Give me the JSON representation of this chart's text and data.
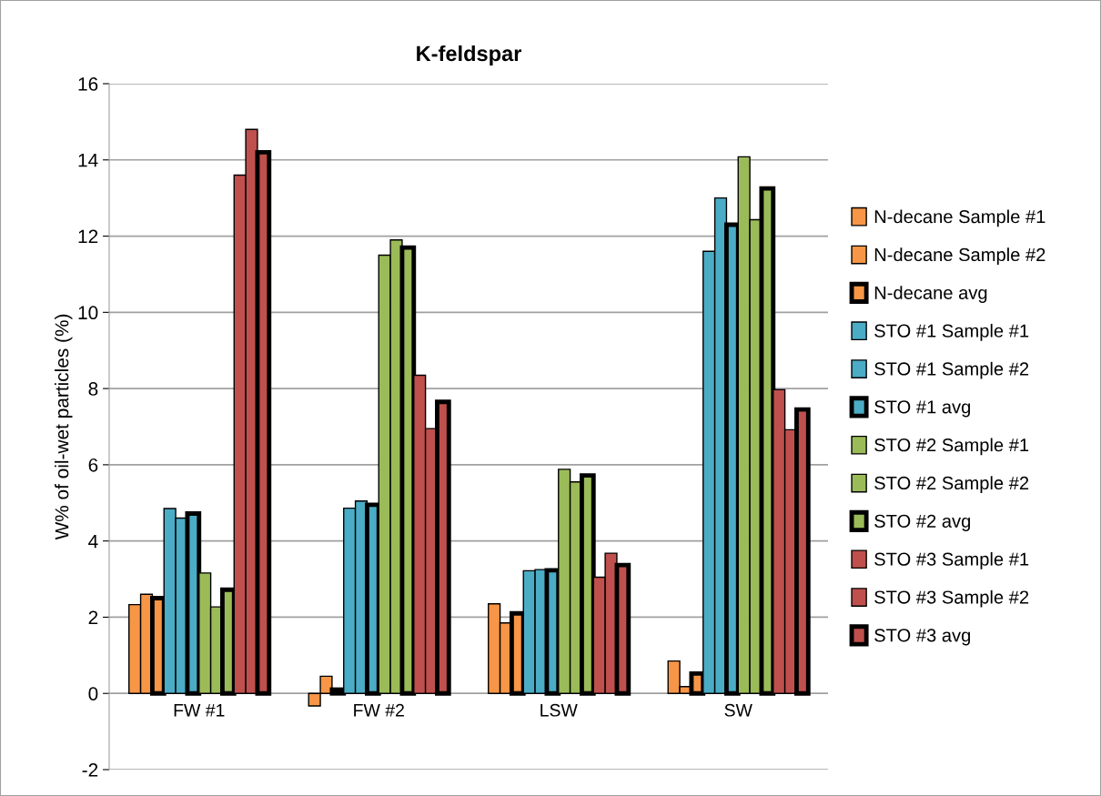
{
  "chart_data": {
    "type": "bar",
    "title": "K-feldspar",
    "ylabel": "W% of oil-wet particles (%)",
    "categories": [
      "FW #1",
      "FW #2",
      "LSW",
      "SW"
    ],
    "ylim": [
      -2,
      16
    ],
    "yticks": [
      -2,
      0,
      2,
      4,
      6,
      8,
      10,
      12,
      14,
      16
    ],
    "grid": "y",
    "legend": "right",
    "series": [
      {
        "name": "N-decane Sample #1",
        "color": "#f79646",
        "values": [
          2.33,
          -0.33,
          2.35,
          0.85
        ]
      },
      {
        "name": "N-decane Sample #2",
        "color": "#f79646",
        "values": [
          2.6,
          0.45,
          1.85,
          0.18
        ]
      },
      {
        "name": "N-decane avg",
        "color": "#f79646",
        "values": [
          2.5,
          0.1,
          2.1,
          0.52
        ]
      },
      {
        "name": "STO #1 Sample #1",
        "color": "#4bacc6",
        "values": [
          4.85,
          4.86,
          3.22,
          11.6
        ]
      },
      {
        "name": "STO #1 Sample #2",
        "color": "#4bacc6",
        "values": [
          4.6,
          5.05,
          3.25,
          13.0
        ]
      },
      {
        "name": "STO #1 avg",
        "color": "#4bacc6",
        "values": [
          4.72,
          4.95,
          3.23,
          12.3
        ]
      },
      {
        "name": "STO #2 Sample #1",
        "color": "#9bbb59",
        "values": [
          3.16,
          11.5,
          5.88,
          14.08
        ]
      },
      {
        "name": "STO #2 Sample #2",
        "color": "#9bbb59",
        "values": [
          2.27,
          11.9,
          5.55,
          12.43
        ]
      },
      {
        "name": "STO #2 avg",
        "color": "#9bbb59",
        "values": [
          2.72,
          11.7,
          5.72,
          13.25
        ]
      },
      {
        "name": "STO #3 Sample #1",
        "color": "#c0504d",
        "values": [
          13.6,
          8.35,
          3.05,
          7.97
        ]
      },
      {
        "name": "STO #3 Sample #2",
        "color": "#c0504d",
        "values": [
          14.8,
          6.95,
          3.68,
          6.92
        ]
      },
      {
        "name": "STO #3 avg",
        "color": "#c0504d",
        "values": [
          14.2,
          7.65,
          3.37,
          7.45
        ]
      }
    ]
  }
}
